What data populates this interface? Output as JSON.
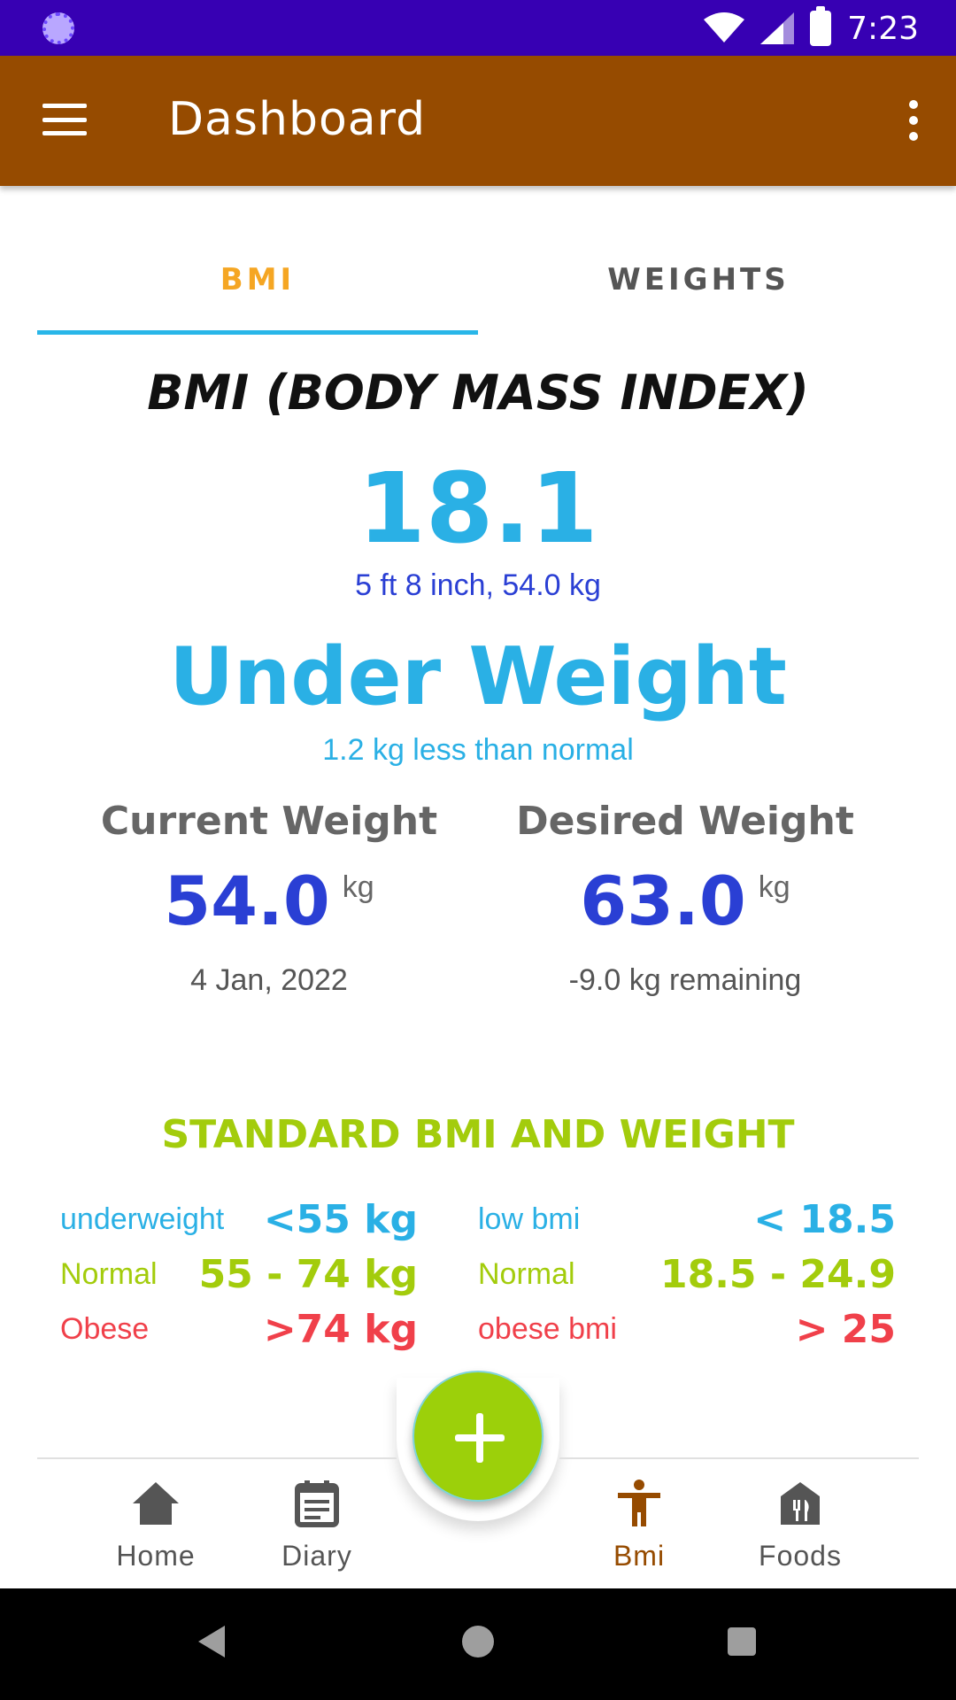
{
  "status_bar": {
    "time": "7:23"
  },
  "app_bar": {
    "title": "Dashboard"
  },
  "tabs": [
    {
      "label": "BMI",
      "active": true
    },
    {
      "label": "WEIGHTS",
      "active": false
    }
  ],
  "bmi": {
    "title": "BMI (BODY MASS INDEX)",
    "value": "18.1",
    "details": "5 ft 8 inch, 54.0 kg",
    "status": "Under Weight",
    "status_diff": "1.2 kg less than normal"
  },
  "current_weight": {
    "heading": "Current Weight",
    "value": "54.0",
    "unit": "kg",
    "sub": "4 Jan, 2022"
  },
  "desired_weight": {
    "heading": "Desired Weight",
    "value": "63.0",
    "unit": "kg",
    "sub": "-9.0 kg remaining"
  },
  "standard": {
    "title": "STANDARD BMI AND WEIGHT",
    "rows": [
      {
        "weight_label": "underweight",
        "weight_value": "<55 kg",
        "bmi_label": "low bmi",
        "bmi_value": "< 18.5"
      },
      {
        "weight_label": "Normal",
        "weight_value": "55 - 74 kg",
        "bmi_label": "Normal",
        "bmi_value": "18.5 - 24.9"
      },
      {
        "weight_label": "Obese",
        "weight_value": ">74 kg",
        "bmi_label": "obese bmi",
        "bmi_value": "> 25"
      }
    ]
  },
  "bottom_nav": [
    {
      "label": "Home",
      "icon": "home-icon",
      "active": false
    },
    {
      "label": "Diary",
      "icon": "calendar-icon",
      "active": false
    },
    {
      "label": "Bmi",
      "icon": "person-icon",
      "active": true
    },
    {
      "label": "Foods",
      "icon": "restaurant-icon",
      "active": false
    }
  ],
  "colors": {
    "status_bar": "#3700b3",
    "app_bar": "#964b00",
    "accent_orange": "#f5a623",
    "tab_indicator": "#29b6e8",
    "bmi_blue": "#2ab0e5",
    "dark_blue": "#2a3fd4",
    "green": "#a3cc0c",
    "red": "#f0404a",
    "fab": "#9cd00a"
  }
}
